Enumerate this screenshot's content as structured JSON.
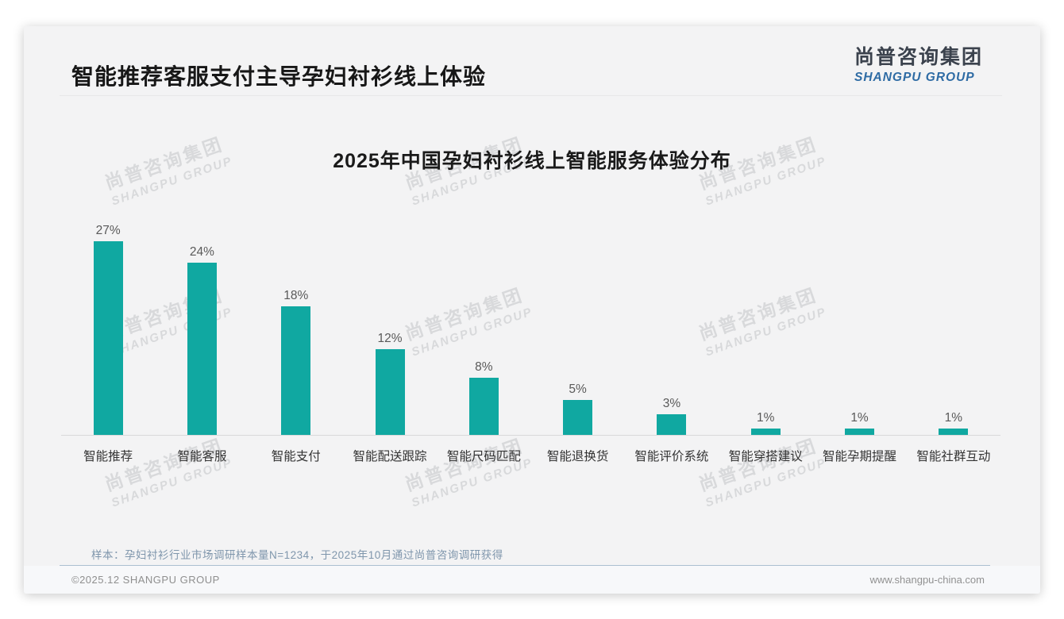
{
  "header": {
    "title": "智能推荐客服支付主导孕妇衬衫线上体验"
  },
  "logo": {
    "cn": "尚普咨询集团",
    "en": "SHANGPU GROUP"
  },
  "watermark": {
    "line1": "尚普咨询集团",
    "line2": "SHANGPU GROUP"
  },
  "chart_data": {
    "type": "bar",
    "title": "2025年中国孕妇衬衫线上智能服务体验分布",
    "categories": [
      "智能推荐",
      "智能客服",
      "智能支付",
      "智能配送跟踪",
      "智能尺码匹配",
      "智能退换货",
      "智能评价系统",
      "智能穿搭建议",
      "智能孕期提醒",
      "智能社群互动"
    ],
    "values": [
      27,
      24,
      18,
      12,
      8,
      5,
      3,
      1,
      1,
      1
    ],
    "value_suffix": "%",
    "xlabel": "",
    "ylabel": "",
    "ylim": [
      0,
      30
    ],
    "grid": false,
    "legend": false,
    "bar_color": "#10a8a1"
  },
  "footnote": "样本：孕妇衬衫行业市场调研样本量N=1234，于2025年10月通过尚普咨询调研获得",
  "footer": {
    "copyright": "©2025.12 SHANGPU GROUP",
    "website": "www.shangpu-china.com"
  }
}
